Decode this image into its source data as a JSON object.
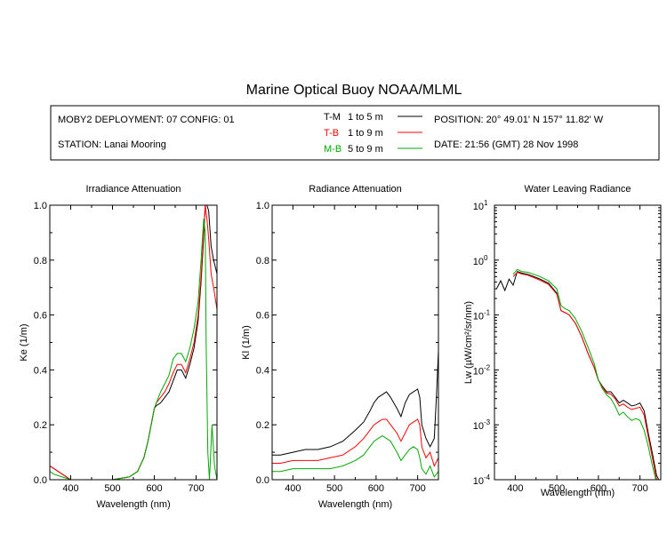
{
  "title": "Marine Optical Buoy NOAA/MLML",
  "info": {
    "deployment": "MOBY2 DEPLOYMENT: 07 CONFIG: 01",
    "station": "STATION: Lanai Mooring",
    "position": "POSITION: 20° 49.01' N   157° 11.82' W",
    "date": "DATE: 21:56 (GMT) 28 Nov 1998",
    "legend": [
      {
        "code": "T-M",
        "range": "1 to 5  m",
        "color": "#000000"
      },
      {
        "code": "T-B",
        "range": "1 to 9  m",
        "color": "#ff0000"
      },
      {
        "code": "M-B",
        "range": "5 to 9  m",
        "color": "#00aa00"
      }
    ]
  },
  "chart_data": [
    {
      "type": "line",
      "title": "Irradiance Attenuation",
      "xlabel": "Wavelength (nm)",
      "ylabel": "Ke  (1/m)",
      "xlim": [
        350,
        750
      ],
      "ylim": [
        0,
        1.0
      ],
      "xticks": [
        400,
        500,
        600,
        700
      ],
      "yticks": [
        0.0,
        0.2,
        0.4,
        0.6,
        0.8,
        1.0
      ],
      "ytick_labels": [
        "0.0",
        "0.2",
        "0.4",
        "0.6",
        "0.8",
        "1.0"
      ],
      "series": [
        {
          "name": "T-M",
          "color": "#000000",
          "x": [
            350,
            360,
            380,
            400,
            450,
            500,
            540,
            560,
            575,
            585,
            595,
            600,
            605,
            615,
            625,
            635,
            645,
            655,
            665,
            675,
            685,
            695,
            705,
            712,
            718,
            722,
            726,
            730,
            736,
            742,
            750
          ],
          "y": [
            0.05,
            0.04,
            0.02,
            0.0,
            0.0,
            0.0,
            0.01,
            0.03,
            0.08,
            0.14,
            0.22,
            0.26,
            0.27,
            0.28,
            0.3,
            0.32,
            0.36,
            0.4,
            0.4,
            0.37,
            0.42,
            0.48,
            0.58,
            0.72,
            0.88,
            1.0,
            1.0,
            0.98,
            0.85,
            0.8,
            0.75
          ]
        },
        {
          "name": "T-B",
          "color": "#ff0000",
          "x": [
            350,
            360,
            380,
            400,
            450,
            500,
            540,
            560,
            575,
            585,
            595,
            600,
            605,
            615,
            625,
            635,
            645,
            655,
            665,
            675,
            685,
            695,
            705,
            712,
            718,
            722,
            726,
            730,
            736,
            742,
            750
          ],
          "y": [
            0.05,
            0.04,
            0.02,
            0.0,
            0.0,
            0.0,
            0.01,
            0.03,
            0.08,
            0.14,
            0.22,
            0.26,
            0.28,
            0.3,
            0.32,
            0.35,
            0.39,
            0.42,
            0.42,
            0.39,
            0.44,
            0.5,
            0.6,
            0.74,
            0.9,
            1.0,
            0.95,
            0.88,
            0.75,
            0.7,
            0.62
          ]
        },
        {
          "name": "M-B",
          "color": "#00aa00",
          "x": [
            350,
            360,
            380,
            400,
            450,
            500,
            540,
            560,
            575,
            585,
            595,
            600,
            605,
            615,
            625,
            635,
            645,
            655,
            665,
            675,
            685,
            695,
            705,
            712,
            718,
            722,
            724,
            728,
            732,
            738,
            744,
            750
          ],
          "y": [
            0.03,
            0.02,
            0.01,
            0.0,
            0.0,
            0.0,
            0.01,
            0.03,
            0.08,
            0.14,
            0.22,
            0.26,
            0.28,
            0.32,
            0.35,
            0.38,
            0.44,
            0.46,
            0.46,
            0.43,
            0.48,
            0.55,
            0.65,
            0.8,
            0.95,
            0.9,
            0.5,
            0.1,
            0.0,
            0.2,
            0.05,
            0.0
          ]
        }
      ]
    },
    {
      "type": "line",
      "title": "Radiance Attenuation",
      "xlabel": "Wavelength (nm)",
      "ylabel": "Kl  (1/m)",
      "xlim": [
        350,
        750
      ],
      "ylim": [
        0,
        1.0
      ],
      "xticks": [
        400,
        500,
        600,
        700
      ],
      "yticks": [
        0.0,
        0.2,
        0.4,
        0.6,
        0.8,
        1.0
      ],
      "ytick_labels": [
        "0.0",
        "0.2",
        "0.4",
        "0.6",
        "0.8",
        "1.0"
      ],
      "series": [
        {
          "name": "T-M",
          "color": "#000000",
          "x": [
            350,
            370,
            400,
            430,
            460,
            490,
            520,
            550,
            570,
            585,
            595,
            605,
            615,
            625,
            635,
            650,
            660,
            670,
            680,
            690,
            700,
            705,
            710,
            720,
            730,
            740,
            745,
            750
          ],
          "y": [
            0.09,
            0.09,
            0.1,
            0.11,
            0.11,
            0.12,
            0.14,
            0.18,
            0.21,
            0.25,
            0.28,
            0.3,
            0.31,
            0.32,
            0.3,
            0.26,
            0.23,
            0.28,
            0.31,
            0.32,
            0.33,
            0.3,
            0.2,
            0.15,
            0.12,
            0.15,
            0.3,
            0.47
          ]
        },
        {
          "name": "T-B",
          "color": "#ff0000",
          "x": [
            350,
            370,
            400,
            430,
            460,
            490,
            520,
            550,
            570,
            585,
            595,
            605,
            615,
            625,
            635,
            650,
            660,
            670,
            680,
            690,
            700,
            705,
            710,
            720,
            730,
            740,
            750
          ],
          "y": [
            0.06,
            0.06,
            0.07,
            0.07,
            0.07,
            0.08,
            0.09,
            0.12,
            0.15,
            0.18,
            0.2,
            0.21,
            0.22,
            0.22,
            0.2,
            0.17,
            0.14,
            0.17,
            0.2,
            0.21,
            0.22,
            0.2,
            0.12,
            0.08,
            0.1,
            0.05,
            0.08
          ]
        },
        {
          "name": "M-B",
          "color": "#00aa00",
          "x": [
            350,
            370,
            400,
            430,
            460,
            490,
            520,
            550,
            570,
            585,
            595,
            605,
            615,
            625,
            635,
            650,
            660,
            670,
            680,
            690,
            700,
            705,
            710,
            720,
            730,
            740,
            750
          ],
          "y": [
            0.03,
            0.03,
            0.04,
            0.04,
            0.04,
            0.04,
            0.05,
            0.07,
            0.09,
            0.12,
            0.14,
            0.15,
            0.16,
            0.15,
            0.14,
            0.1,
            0.07,
            0.09,
            0.11,
            0.12,
            0.11,
            0.08,
            0.04,
            0.02,
            0.05,
            0.01,
            0.03
          ]
        }
      ]
    },
    {
      "type": "line",
      "title": "Water Leaving Radiance",
      "xlabel": "Wavelength (nm)",
      "ylabel": "Lw  (µW/cm²/sr/nm)",
      "yscale": "log",
      "xlim": [
        350,
        750
      ],
      "ylim": [
        0.0001,
        10
      ],
      "xticks": [
        400,
        500,
        600,
        700
      ],
      "yticks": [
        0.0001,
        0.001,
        0.01,
        0.1,
        1,
        10
      ],
      "ytick_labels": [
        {
          "base": "10",
          "exp": "-4"
        },
        {
          "base": "10",
          "exp": "-3"
        },
        {
          "base": "10",
          "exp": "-2"
        },
        {
          "base": "10",
          "exp": "-1"
        },
        {
          "base": "10",
          "exp": "0"
        },
        {
          "base": "10",
          "exp": "1"
        }
      ],
      "series": [
        {
          "name": "T-M",
          "color": "#000000",
          "x": [
            355,
            365,
            375,
            385,
            395,
            405,
            415,
            430,
            445,
            460,
            480,
            500,
            510,
            520,
            530,
            545,
            560,
            575,
            590,
            600,
            610,
            620,
            630,
            640,
            650,
            660,
            670,
            680,
            690,
            700,
            710,
            720,
            730,
            740,
            745
          ],
          "y": [
            0.3,
            0.42,
            0.28,
            0.45,
            0.35,
            0.62,
            0.58,
            0.55,
            0.5,
            0.45,
            0.38,
            0.25,
            0.12,
            0.11,
            0.1,
            0.07,
            0.04,
            0.02,
            0.011,
            0.0065,
            0.005,
            0.004,
            0.004,
            0.0032,
            0.0025,
            0.0028,
            0.0025,
            0.0022,
            0.0023,
            0.0025,
            0.0018,
            0.0007,
            0.0003,
            0.00012,
            0.0001
          ]
        },
        {
          "name": "T-B",
          "color": "#ff0000",
          "x": [
            395,
            405,
            415,
            430,
            445,
            460,
            480,
            500,
            510,
            520,
            530,
            545,
            560,
            575,
            590,
            600,
            610,
            620,
            630,
            640,
            650,
            660,
            670,
            680,
            690,
            700,
            710,
            720,
            730,
            740
          ],
          "y": [
            0.5,
            0.6,
            0.56,
            0.53,
            0.48,
            0.43,
            0.36,
            0.24,
            0.12,
            0.11,
            0.1,
            0.07,
            0.04,
            0.02,
            0.011,
            0.0065,
            0.0048,
            0.0038,
            0.0036,
            0.003,
            0.0022,
            0.0024,
            0.0021,
            0.0019,
            0.002,
            0.0021,
            0.0015,
            0.0006,
            0.00025,
            0.0001
          ]
        },
        {
          "name": "M-B",
          "color": "#00aa00",
          "x": [
            395,
            405,
            415,
            430,
            445,
            460,
            480,
            500,
            510,
            520,
            530,
            545,
            560,
            575,
            590,
            600,
            610,
            620,
            630,
            640,
            650,
            660,
            670,
            680,
            690,
            700,
            710,
            720,
            730,
            738
          ],
          "y": [
            0.55,
            0.68,
            0.62,
            0.6,
            0.55,
            0.5,
            0.42,
            0.3,
            0.15,
            0.13,
            0.12,
            0.085,
            0.05,
            0.026,
            0.013,
            0.0065,
            0.0045,
            0.0035,
            0.003,
            0.0022,
            0.0015,
            0.0017,
            0.0014,
            0.0012,
            0.0013,
            0.0012,
            0.0008,
            0.0004,
            0.00018,
            0.0001
          ]
        }
      ]
    }
  ]
}
